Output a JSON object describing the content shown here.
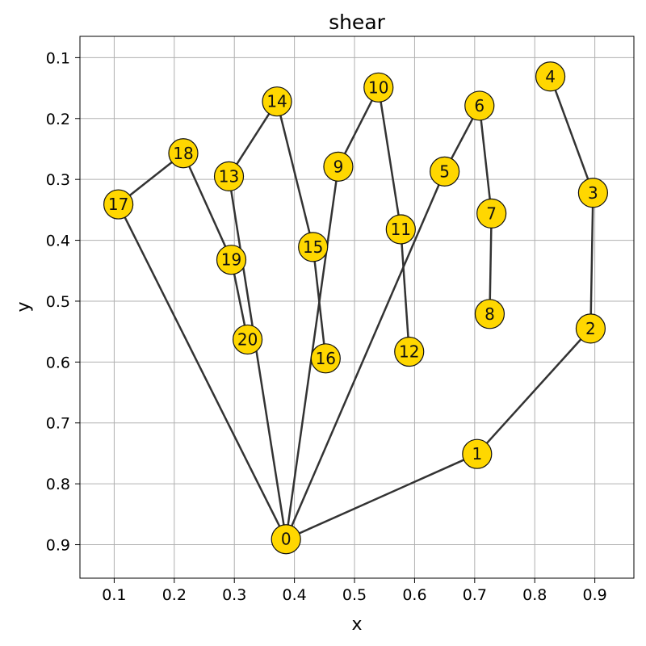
{
  "chart_data": {
    "type": "network",
    "title": "shear",
    "xlabel": "x",
    "ylabel": "y",
    "xlim": [
      0.043,
      0.965
    ],
    "ylim": [
      0.955,
      0.065
    ],
    "y_inverted": true,
    "grid": true,
    "xticks": [
      0.1,
      0.2,
      0.3,
      0.4,
      0.5,
      0.6,
      0.7,
      0.8,
      0.9
    ],
    "xtick_labels": [
      "0.1",
      "0.2",
      "0.3",
      "0.4",
      "0.5",
      "0.6",
      "0.7",
      "0.8",
      "0.9"
    ],
    "yticks": [
      0.1,
      0.2,
      0.3,
      0.4,
      0.5,
      0.6,
      0.7,
      0.8,
      0.9
    ],
    "ytick_labels": [
      "0.1",
      "0.2",
      "0.3",
      "0.4",
      "0.5",
      "0.6",
      "0.7",
      "0.8",
      "0.9"
    ],
    "node_color": "#ffd700",
    "edge_color": "#333333",
    "nodes": [
      {
        "id": "0",
        "x": 0.386,
        "y": 0.891
      },
      {
        "id": "1",
        "x": 0.704,
        "y": 0.751
      },
      {
        "id": "2",
        "x": 0.893,
        "y": 0.545
      },
      {
        "id": "3",
        "x": 0.897,
        "y": 0.322
      },
      {
        "id": "4",
        "x": 0.826,
        "y": 0.131
      },
      {
        "id": "5",
        "x": 0.65,
        "y": 0.287
      },
      {
        "id": "6",
        "x": 0.708,
        "y": 0.179
      },
      {
        "id": "7",
        "x": 0.728,
        "y": 0.356
      },
      {
        "id": "8",
        "x": 0.725,
        "y": 0.521
      },
      {
        "id": "9",
        "x": 0.473,
        "y": 0.279
      },
      {
        "id": "10",
        "x": 0.54,
        "y": 0.149
      },
      {
        "id": "11",
        "x": 0.577,
        "y": 0.382
      },
      {
        "id": "12",
        "x": 0.591,
        "y": 0.583
      },
      {
        "id": "13",
        "x": 0.291,
        "y": 0.295
      },
      {
        "id": "14",
        "x": 0.371,
        "y": 0.172
      },
      {
        "id": "15",
        "x": 0.431,
        "y": 0.411
      },
      {
        "id": "16",
        "x": 0.452,
        "y": 0.594
      },
      {
        "id": "17",
        "x": 0.107,
        "y": 0.341
      },
      {
        "id": "18",
        "x": 0.215,
        "y": 0.257
      },
      {
        "id": "19",
        "x": 0.295,
        "y": 0.432
      },
      {
        "id": "20",
        "x": 0.322,
        "y": 0.563
      }
    ],
    "edges": [
      [
        "0",
        "1"
      ],
      [
        "1",
        "2"
      ],
      [
        "2",
        "3"
      ],
      [
        "3",
        "4"
      ],
      [
        "0",
        "5"
      ],
      [
        "5",
        "6"
      ],
      [
        "6",
        "7"
      ],
      [
        "7",
        "8"
      ],
      [
        "0",
        "9"
      ],
      [
        "9",
        "10"
      ],
      [
        "10",
        "11"
      ],
      [
        "11",
        "12"
      ],
      [
        "0",
        "13"
      ],
      [
        "13",
        "14"
      ],
      [
        "14",
        "15"
      ],
      [
        "15",
        "16"
      ],
      [
        "0",
        "17"
      ],
      [
        "17",
        "18"
      ],
      [
        "18",
        "19"
      ],
      [
        "19",
        "20"
      ]
    ]
  }
}
